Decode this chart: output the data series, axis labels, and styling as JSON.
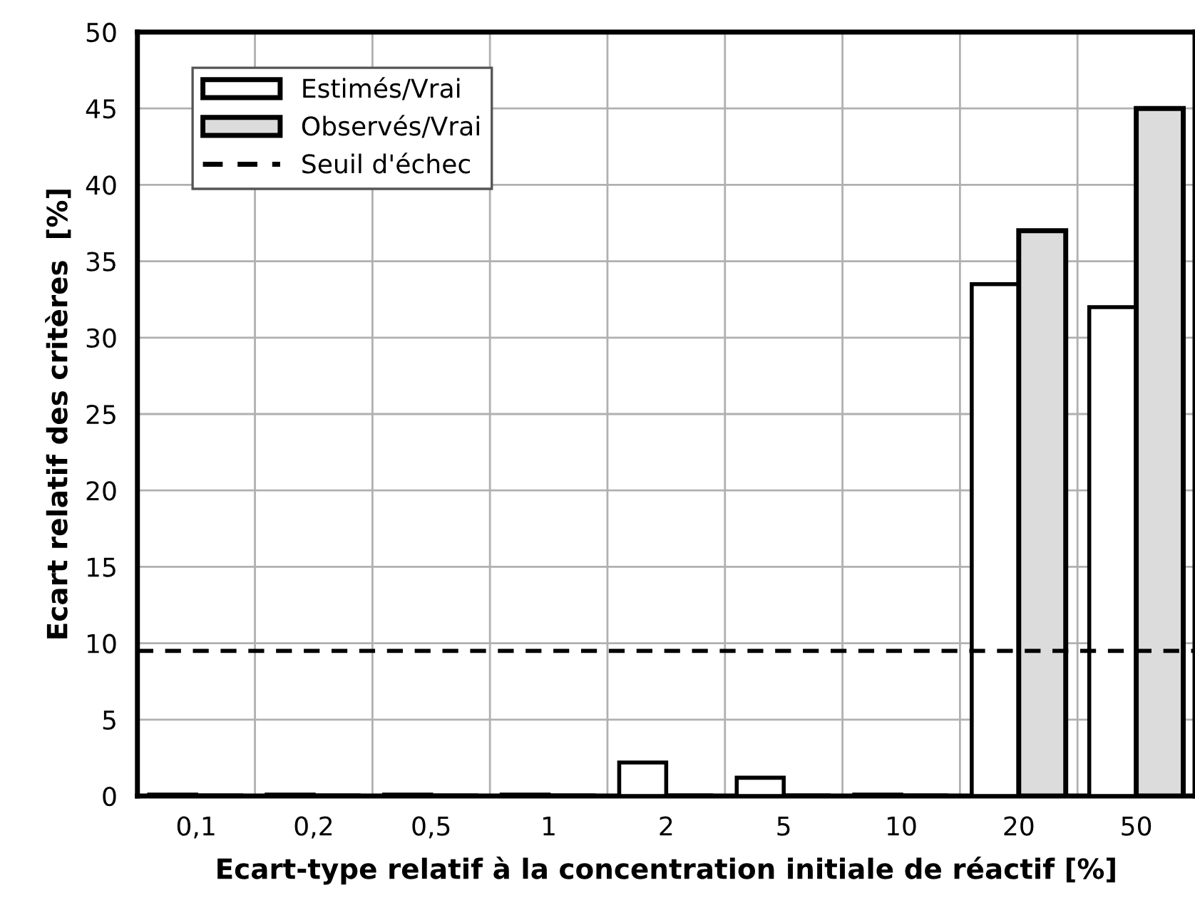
{
  "chart_data": {
    "type": "bar",
    "xlabel": "Ecart-type relatif à la concentration initiale de réactif [%]",
    "ylabel": "Ecart relatif des critères  [%]",
    "categories": [
      "0,1",
      "0,2",
      "0,5",
      "1",
      "2",
      "5",
      "10",
      "20",
      "50"
    ],
    "series": [
      {
        "name": "Estimés/Vrai",
        "color": "#ffffff",
        "values": [
          0.1,
          0.1,
          0.1,
          0.1,
          2.2,
          1.2,
          0.1,
          33.5,
          32
        ]
      },
      {
        "name": "Observés/Vrai",
        "color": "#dcdcdc",
        "values": [
          0,
          0,
          0,
          0,
          0,
          0,
          0,
          37,
          45
        ]
      }
    ],
    "ref_lines": [
      {
        "axis": "y",
        "value": 9.5,
        "label": "Seuil d'échec",
        "line_style": "dashed",
        "color": "#000000"
      }
    ],
    "ylim": [
      0,
      50
    ],
    "yticks": [
      0,
      5,
      10,
      15,
      20,
      25,
      30,
      35,
      40,
      45,
      50
    ],
    "grid": true,
    "legend": "top left"
  }
}
